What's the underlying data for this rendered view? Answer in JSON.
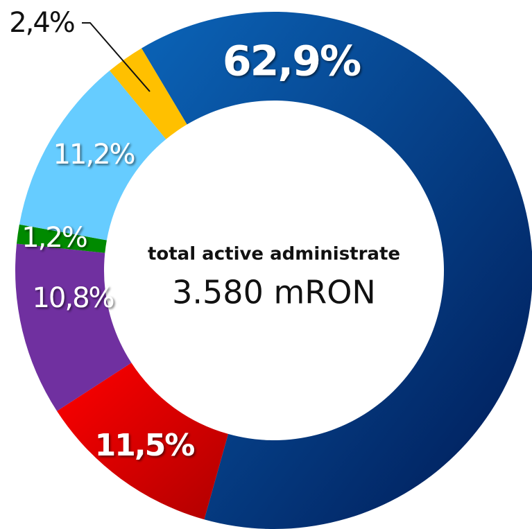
{
  "chart_data": {
    "type": "donut",
    "center_title": "total active administrate",
    "center_value": "3.580 mRON",
    "values": [
      62.9,
      11.5,
      10.8,
      1.2,
      11.2,
      2.4
    ],
    "value_labels": [
      "62,9%",
      "11,5%",
      "10,8%",
      "1,2%",
      "11,2%",
      "2,4%"
    ],
    "colors": [
      "#0b5aa8",
      "#e60000",
      "#7030a0",
      "#008a00",
      "#66ccff",
      "#ffc000"
    ]
  }
}
